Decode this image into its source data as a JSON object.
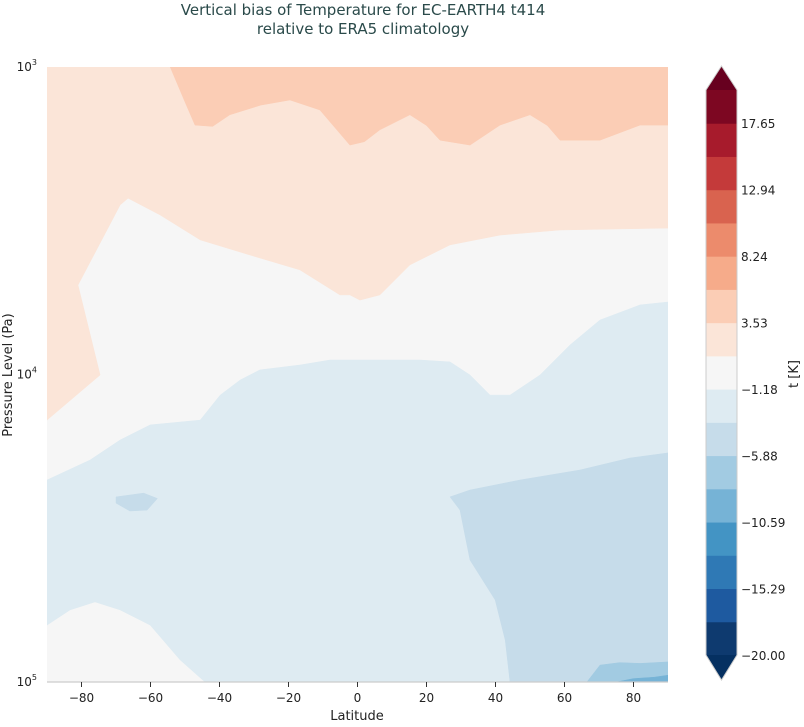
{
  "chart_data": {
    "type": "contourf",
    "title": [
      "Vertical bias of Temperature for EC-EARTH4 t414",
      "relative to ERA5 climatology"
    ],
    "title_color": "#2a4a4a",
    "xlabel": "Latitude",
    "ylabel": "Pressure Level (Pa)",
    "xlim": [
      -90,
      90
    ],
    "ylim": [
      1000,
      100000
    ],
    "y_scale": "log",
    "y_inverted": false,
    "x_ticks": [
      -80,
      -60,
      -40,
      -20,
      0,
      20,
      40,
      60,
      80
    ],
    "y_ticks": [
      {
        "value": 1000,
        "base": "10",
        "exp": "3"
      },
      {
        "value": 10000,
        "base": "10",
        "exp": "4"
      },
      {
        "value": 100000,
        "base": "10",
        "exp": "5"
      }
    ],
    "colorbar": {
      "label": "t [K]",
      "levels_min": -20.0,
      "levels_max": 20.0,
      "extend": "both",
      "tick_labels": [
        "−20.00",
        "−15.29",
        "−10.59",
        "−5.88",
        "−1.18",
        "3.53",
        "8.24",
        "12.94",
        "17.65"
      ],
      "tick_values": [
        -20.0,
        -15.29,
        -10.59,
        -5.88,
        -1.18,
        3.53,
        8.24,
        12.94,
        17.65
      ],
      "colors": [
        "#0e3a6f",
        "#1e5aa0",
        "#2f79b5",
        "#4394c4",
        "#76b3d6",
        "#a2cbe2",
        "#c6dcea",
        "#deebf2",
        "#f6f6f6",
        "#fbe5d8",
        "#fbcdb5",
        "#f6ab8a",
        "#ec8b6c",
        "#d9634f",
        "#c43a3a",
        "#a71b2c",
        "#7d0722"
      ],
      "under_color": "#053061",
      "over_color": "#67001f"
    },
    "background_band": {
      "range": [
        -1.18,
        1.18
      ],
      "color": "#f6f6f6"
    },
    "regions": [
      {
        "range": [
          1.18,
          3.53
        ],
        "color": "#fbe5d8",
        "polygon": [
          [
            -90,
            1000
          ],
          [
            90,
            1000
          ],
          [
            90,
            3340
          ],
          [
            58.7,
            3390
          ],
          [
            41.3,
            3520
          ],
          [
            26.8,
            3790
          ],
          [
            15.2,
            4400
          ],
          [
            6.5,
            5510
          ],
          [
            0.7,
            5730
          ],
          [
            -2.2,
            5510
          ],
          [
            -5.1,
            5510
          ],
          [
            -16.7,
            4570
          ],
          [
            -31.1,
            4090
          ],
          [
            -45.6,
            3650
          ],
          [
            -57.2,
            3030
          ],
          [
            -66.5,
            2670
          ],
          [
            -68.8,
            2810
          ],
          [
            -81,
            5120
          ],
          [
            -74.6,
            10040
          ],
          [
            -90,
            14070
          ]
        ]
      },
      {
        "range": [
          3.53,
          5.88
        ],
        "color": "#fbcdb5",
        "polygon": [
          [
            -54.3,
            1000
          ],
          [
            -50,
            1300
          ],
          [
            -47.1,
            1545
          ],
          [
            -42,
            1560
          ],
          [
            -37,
            1430
          ],
          [
            -28,
            1330
          ],
          [
            -19.6,
            1280
          ],
          [
            -10.9,
            1380
          ],
          [
            -6,
            1600
          ],
          [
            -2.2,
            1795
          ],
          [
            2,
            1750
          ],
          [
            6.5,
            1600
          ],
          [
            15.2,
            1430
          ],
          [
            20,
            1550
          ],
          [
            23.9,
            1730
          ],
          [
            32.6,
            1795
          ],
          [
            41.3,
            1545
          ],
          [
            50,
            1430
          ],
          [
            55,
            1550
          ],
          [
            58.7,
            1730
          ],
          [
            70.3,
            1730
          ],
          [
            81.9,
            1545
          ],
          [
            90,
            1545
          ],
          [
            90,
            1000
          ]
        ]
      },
      {
        "range": [
          -3.53,
          -1.18
        ],
        "color": "#deebf2",
        "polygon": [
          [
            -90,
            22040
          ],
          [
            -77.5,
            18970
          ],
          [
            -68.8,
            16330
          ],
          [
            -60.1,
            14590
          ],
          [
            -45.6,
            14070
          ],
          [
            -39.8,
            11670
          ],
          [
            -34,
            10420
          ],
          [
            -28.3,
            9660
          ],
          [
            -16.7,
            9310
          ],
          [
            -8,
            8970
          ],
          [
            6.5,
            8970
          ],
          [
            18.1,
            8970
          ],
          [
            26.8,
            9100
          ],
          [
            32.6,
            10040
          ],
          [
            38.4,
            11670
          ],
          [
            44.2,
            11670
          ],
          [
            52.9,
            10040
          ],
          [
            61.6,
            8020
          ],
          [
            70.3,
            6650
          ],
          [
            81.9,
            5940
          ],
          [
            90,
            5810
          ],
          [
            90,
            100000
          ],
          [
            -44.2,
            100000
          ],
          [
            -51.4,
            84800
          ],
          [
            -60.1,
            65300
          ],
          [
            -68.8,
            58300
          ],
          [
            -76.1,
            54900
          ],
          [
            -83.3,
            58300
          ],
          [
            -90,
            65300
          ]
        ]
      },
      {
        "range": [
          -5.88,
          -3.53
        ],
        "color": "#c6dcea",
        "polygon": [
          [
            26.8,
            25000
          ],
          [
            32.6,
            23750
          ],
          [
            47.1,
            22040
          ],
          [
            64.5,
            20450
          ],
          [
            79,
            18690
          ],
          [
            90,
            17990
          ],
          [
            90,
            100000
          ],
          [
            44.2,
            100000
          ],
          [
            42.8,
            73000
          ],
          [
            39.9,
            54100
          ],
          [
            32.6,
            40100
          ],
          [
            29.7,
            27600
          ]
        ]
      },
      {
        "range": [
          -5.88,
          -3.53
        ],
        "color": "#c6dcea",
        "polygon": [
          [
            -70,
            25000
          ],
          [
            -62,
            24300
          ],
          [
            -58,
            25300
          ],
          [
            -61,
            27600
          ],
          [
            -66,
            27800
          ],
          [
            -70,
            26200
          ]
        ]
      },
      {
        "range": [
          -8.24,
          -5.88
        ],
        "color": "#a2cbe2",
        "polygon": [
          [
            66.5,
            100000
          ],
          [
            70.3,
            88100
          ],
          [
            76,
            86500
          ],
          [
            81.9,
            87000
          ],
          [
            90,
            86000
          ],
          [
            90,
            100000
          ]
        ]
      },
      {
        "range": [
          -10.59,
          -8.24
        ],
        "color": "#76b3d6",
        "polygon": [
          [
            75,
            100000
          ],
          [
            80,
            97500
          ],
          [
            86,
            96500
          ],
          [
            90,
            95000
          ],
          [
            90,
            100000
          ]
        ]
      }
    ]
  }
}
